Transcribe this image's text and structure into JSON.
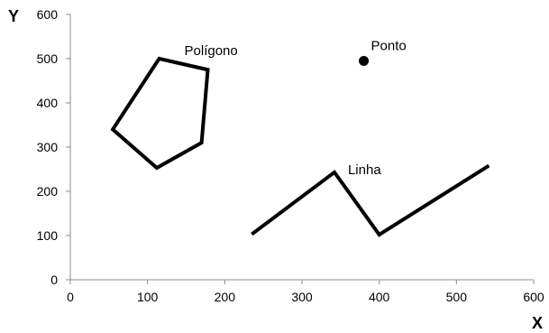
{
  "chart_data": {
    "type": "scatter",
    "xlabel": "X",
    "ylabel": "Y",
    "xlim": [
      0,
      600
    ],
    "ylim": [
      0,
      600
    ],
    "x_ticks": [
      "0",
      "100",
      "200",
      "300",
      "400",
      "500",
      "600"
    ],
    "y_ticks": [
      "0",
      "100",
      "200",
      "300",
      "400",
      "500",
      "600"
    ],
    "grid": false,
    "series": [
      {
        "name": "Polígono",
        "kind": "polygon",
        "points": [
          [
            115,
            500
          ],
          [
            178,
            475
          ],
          [
            170,
            310
          ],
          [
            112,
            253
          ],
          [
            55,
            340
          ]
        ]
      },
      {
        "name": "Linha",
        "kind": "polyline",
        "points": [
          [
            235,
            103
          ],
          [
            342,
            243
          ],
          [
            400,
            102
          ],
          [
            542,
            258
          ]
        ]
      },
      {
        "name": "Ponto",
        "kind": "point",
        "points": [
          [
            380,
            495
          ]
        ]
      }
    ]
  }
}
